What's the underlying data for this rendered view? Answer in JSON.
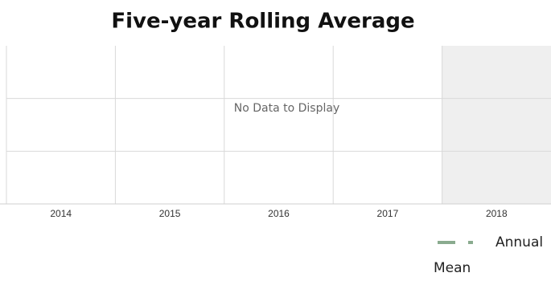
{
  "chart_data": {
    "type": "line",
    "title": "Five-year Rolling Average",
    "categories": [
      "2014",
      "2015",
      "2016",
      "2017",
      "2018"
    ],
    "series": [
      {
        "name": "Annual Mean",
        "color": "#8aab8f",
        "values": [
          null,
          null,
          null,
          null,
          null
        ]
      }
    ],
    "message": "No Data to Display",
    "shaded_categories": [
      4
    ],
    "shade_color": "#efefef",
    "grid": true,
    "legend": "bottom-right"
  }
}
